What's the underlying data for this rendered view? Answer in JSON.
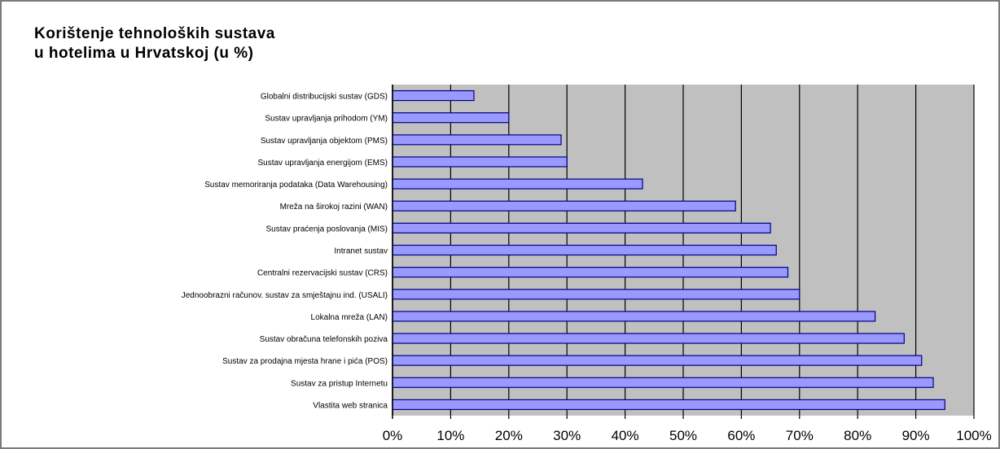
{
  "chart_data": {
    "type": "bar",
    "orientation": "horizontal",
    "title_lines": [
      "Korištenje tehnoloških sustava",
      "u hotelima u Hrvatskoj (u %)"
    ],
    "categories": [
      "Globalni distribucijski sustav (GDS)",
      "Sustav upravljanja prihodom (YM)",
      "Sustav upravljanja objektom (PMS)",
      "Sustav upravljanja energijom (EMS)",
      "Sustav memoriranja podataka (Data Warehousing)",
      "Mreža na širokoj razini (WAN)",
      "Sustav praćenja poslovanja (MIS)",
      "Intranet sustav",
      "Centralni rezervacijski sustav (CRS)",
      "Jednoobrazni računov. sustav za smještajnu ind. (USALI)",
      "Lokalna mreža (LAN)",
      "Sustav obračuna telefonskih poziva",
      "Sustav za prodajna mjesta hrane i pića (POS)",
      "Sustav za pristup Internetu",
      "Vlastita web stranica"
    ],
    "values": [
      14,
      20,
      29,
      30,
      43,
      59,
      65,
      66,
      68,
      70,
      83,
      88,
      91,
      93,
      95
    ],
    "xlim": [
      0,
      100
    ],
    "xticks": [
      "0%",
      "10%",
      "20%",
      "30%",
      "40%",
      "50%",
      "60%",
      "70%",
      "80%",
      "90%",
      "100%"
    ],
    "xlabel": "",
    "ylabel": "",
    "grid": true,
    "legend": "none",
    "colors": {
      "bar_fill": "#9999ff",
      "bar_stroke": "#000080",
      "plot_background": "#c0c0c0",
      "gridline": "#000000"
    }
  }
}
